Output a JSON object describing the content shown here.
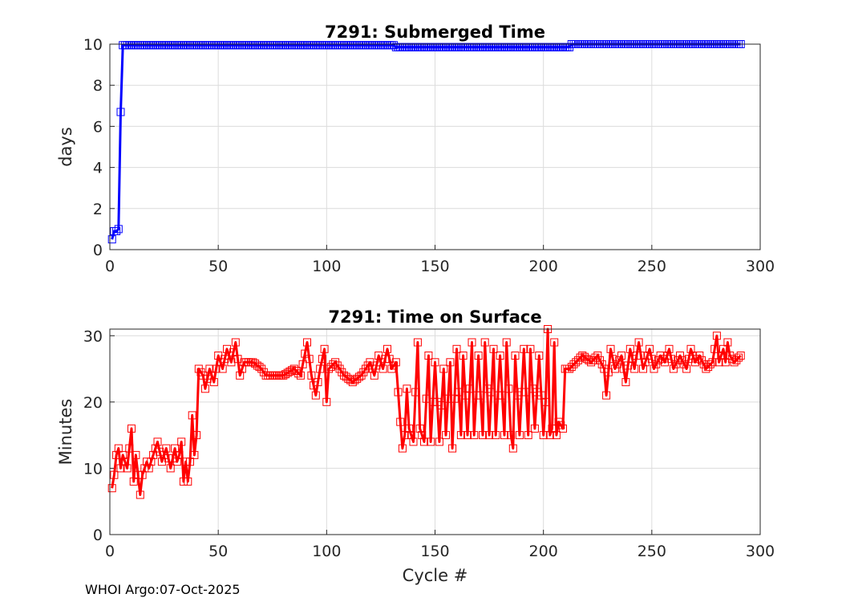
{
  "chart_data": [
    {
      "type": "line",
      "title": "7291: Submerged Time",
      "xlabel": "",
      "ylabel": "days",
      "xlim": [
        0,
        300
      ],
      "ylim": [
        0,
        10
      ],
      "xticks": [
        "0",
        "50",
        "100",
        "150",
        "200",
        "250",
        "300"
      ],
      "yticks": [
        "0",
        "2",
        "4",
        "6",
        "8",
        "10"
      ],
      "grid": true,
      "marker": "square",
      "color": "#0000ff",
      "series": [
        {
          "segments": [
            {
              "x_start": 1,
              "x_end": 1,
              "y": 0.5
            },
            {
              "x_start": 2,
              "x_end": 3,
              "y": 0.9
            },
            {
              "x_start": 4,
              "x_end": 4,
              "y": 1.0
            },
            {
              "x_start": 5,
              "x_end": 5,
              "y": 6.7
            },
            {
              "x_start": 6,
              "x_end": 131,
              "y": 9.95
            },
            {
              "x_start": 132,
              "x_end": 212,
              "y": 9.85
            },
            {
              "x_start": 213,
              "x_end": 291,
              "y": 10.0
            }
          ]
        }
      ]
    },
    {
      "type": "line",
      "title": "7291: Time on Surface",
      "xlabel": "Cycle #",
      "ylabel": "Minutes",
      "xlim": [
        0,
        300
      ],
      "ylim": [
        0,
        31
      ],
      "xticks": [
        "0",
        "50",
        "100",
        "150",
        "200",
        "250",
        "300"
      ],
      "yticks": [
        "0",
        "10",
        "20",
        "30"
      ],
      "grid": true,
      "marker": "square",
      "color": "#ff0000",
      "series": [
        {
          "keypoints": [
            [
              1,
              7
            ],
            [
              2,
              9
            ],
            [
              3,
              12
            ],
            [
              4,
              13
            ],
            [
              5,
              10
            ],
            [
              6,
              12
            ],
            [
              7,
              11
            ],
            [
              8,
              10
            ],
            [
              9,
              13
            ],
            [
              10,
              16
            ],
            [
              11,
              8
            ],
            [
              12,
              12
            ],
            [
              13,
              9
            ],
            [
              14,
              6
            ],
            [
              15,
              9
            ],
            [
              16,
              10
            ],
            [
              17,
              11
            ],
            [
              18,
              10
            ],
            [
              20,
              12
            ],
            [
              22,
              14
            ],
            [
              24,
              11
            ],
            [
              26,
              13
            ],
            [
              28,
              10
            ],
            [
              30,
              13
            ],
            [
              31,
              11
            ],
            [
              32,
              12
            ],
            [
              33,
              14
            ],
            [
              34,
              8
            ],
            [
              35,
              11
            ],
            [
              36,
              8
            ],
            [
              37,
              11
            ],
            [
              38,
              18
            ],
            [
              39,
              12
            ],
            [
              40,
              15
            ],
            [
              41,
              25
            ],
            [
              43,
              24
            ],
            [
              44,
              22
            ],
            [
              46,
              25
            ],
            [
              48,
              23
            ],
            [
              50,
              27
            ],
            [
              52,
              25
            ],
            [
              54,
              28
            ],
            [
              56,
              26
            ],
            [
              58,
              29
            ],
            [
              60,
              24
            ],
            [
              62,
              26
            ],
            [
              66,
              26
            ],
            [
              70,
              25
            ],
            [
              72,
              24
            ],
            [
              80,
              24
            ],
            [
              85,
              25
            ],
            [
              88,
              24
            ],
            [
              91,
              29
            ],
            [
              93,
              24
            ],
            [
              95,
              21
            ],
            [
              97,
              25
            ],
            [
              99,
              28
            ],
            [
              100,
              20
            ],
            [
              101,
              25
            ],
            [
              104,
              26
            ],
            [
              108,
              24
            ],
            [
              112,
              23
            ],
            [
              116,
              24
            ],
            [
              120,
              26
            ],
            [
              122,
              24
            ],
            [
              124,
              27
            ],
            [
              126,
              25
            ],
            [
              128,
              28
            ],
            [
              130,
              25
            ],
            [
              132,
              26
            ],
            [
              134,
              17
            ],
            [
              135,
              13
            ],
            [
              136,
              15
            ],
            [
              137,
              22
            ],
            [
              138,
              16
            ],
            [
              140,
              14
            ],
            [
              142,
              29
            ],
            [
              143,
              16
            ],
            [
              145,
              14
            ],
            [
              147,
              27
            ],
            [
              148,
              14
            ],
            [
              150,
              26
            ],
            [
              152,
              14
            ],
            [
              154,
              25
            ],
            [
              155,
              15
            ],
            [
              157,
              26
            ],
            [
              158,
              13
            ],
            [
              160,
              28
            ],
            [
              162,
              15
            ],
            [
              163,
              27
            ],
            [
              165,
              15
            ],
            [
              167,
              29
            ],
            [
              168,
              15
            ],
            [
              170,
              27
            ],
            [
              172,
              15
            ],
            [
              173,
              29
            ],
            [
              175,
              15
            ],
            [
              177,
              28
            ],
            [
              178,
              15
            ],
            [
              180,
              27
            ],
            [
              182,
              15
            ],
            [
              183,
              29
            ],
            [
              185,
              15
            ],
            [
              186,
              13
            ],
            [
              187,
              27
            ],
            [
              189,
              15
            ],
            [
              191,
              28
            ],
            [
              193,
              15
            ],
            [
              194,
              28
            ],
            [
              196,
              16
            ],
            [
              198,
              27
            ],
            [
              200,
              15
            ],
            [
              201,
              20
            ],
            [
              202,
              31
            ],
            [
              203,
              15
            ],
            [
              204,
              16
            ],
            [
              205,
              29
            ],
            [
              206,
              15
            ],
            [
              207,
              17
            ],
            [
              209,
              16
            ],
            [
              210,
              25
            ],
            [
              212,
              25
            ],
            [
              215,
              26
            ],
            [
              218,
              27
            ],
            [
              222,
              26
            ],
            [
              225,
              27
            ],
            [
              228,
              25
            ],
            [
              229,
              21
            ],
            [
              231,
              28
            ],
            [
              233,
              25
            ],
            [
              236,
              27
            ],
            [
              238,
              23
            ],
            [
              240,
              28
            ],
            [
              242,
              25
            ],
            [
              244,
              29
            ],
            [
              246,
              25
            ],
            [
              249,
              28
            ],
            [
              251,
              25
            ],
            [
              254,
              27
            ],
            [
              256,
              26
            ],
            [
              258,
              28
            ],
            [
              260,
              25
            ],
            [
              263,
              27
            ],
            [
              266,
              25
            ],
            [
              268,
              28
            ],
            [
              270,
              26
            ],
            [
              272,
              27
            ],
            [
              275,
              25
            ],
            [
              278,
              26
            ],
            [
              280,
              30
            ],
            [
              281,
              26
            ],
            [
              283,
              28
            ],
            [
              284,
              26
            ],
            [
              285,
              29
            ],
            [
              286,
              27
            ],
            [
              288,
              26
            ],
            [
              291,
              27
            ]
          ]
        }
      ]
    }
  ],
  "footer": "WHOI Argo:07-Oct-2025"
}
